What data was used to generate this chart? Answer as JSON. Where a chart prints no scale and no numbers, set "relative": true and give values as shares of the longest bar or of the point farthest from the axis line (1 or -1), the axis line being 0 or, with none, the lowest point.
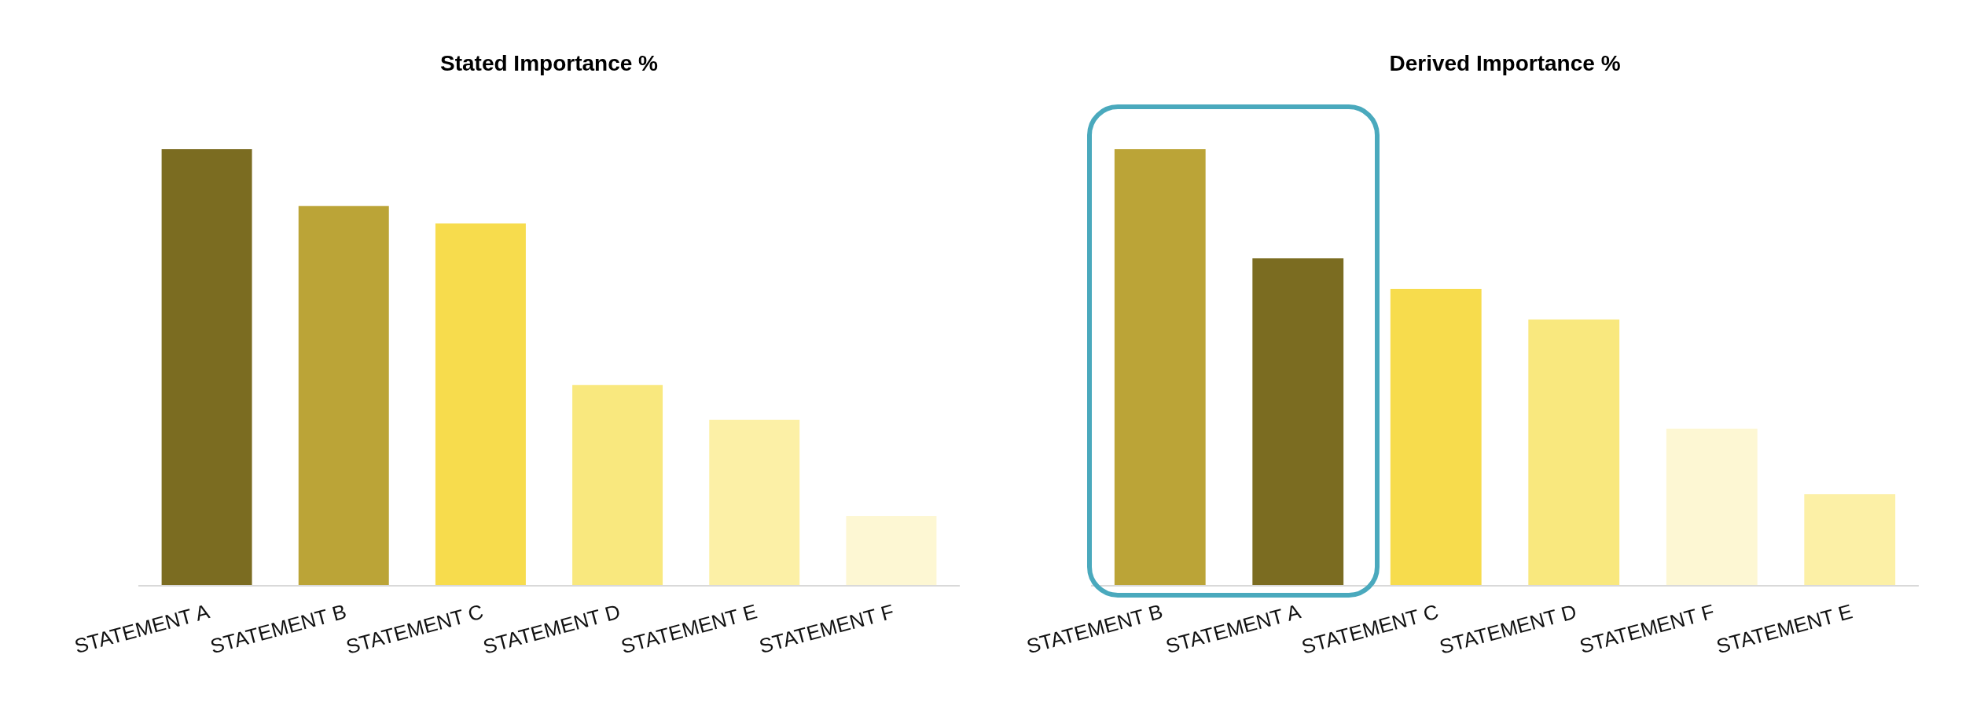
{
  "chart_data": [
    {
      "type": "bar",
      "title": "Stated Importance %",
      "relative": true,
      "categories": [
        "STATEMENT A",
        "STATEMENT B",
        "STATEMENT C",
        "STATEMENT D",
        "STATEMENT E",
        "STATEMENT F"
      ],
      "values": [
        1,
        0.87,
        0.83,
        0.46,
        0.38,
        0.16
      ],
      "colors": [
        "#7b6c21",
        "#bba437",
        "#f7dc4d",
        "#f9e87e",
        "#fcf0a6",
        "#fdf7d3"
      ]
    },
    {
      "type": "bar",
      "title": "Derived Importance %",
      "relative": true,
      "categories": [
        "STATEMENT B",
        "STATEMENT A",
        "STATEMENT C",
        "STATEMENT D",
        "STATEMENT F",
        "STATEMENT E"
      ],
      "values": [
        1,
        0.75,
        0.68,
        0.61,
        0.36,
        0.21
      ],
      "colors": [
        "#bba437",
        "#7b6c21",
        "#f7dc4d",
        "#f9e87e",
        "#fdf7d3",
        "#fcf0a6"
      ]
    }
  ]
}
